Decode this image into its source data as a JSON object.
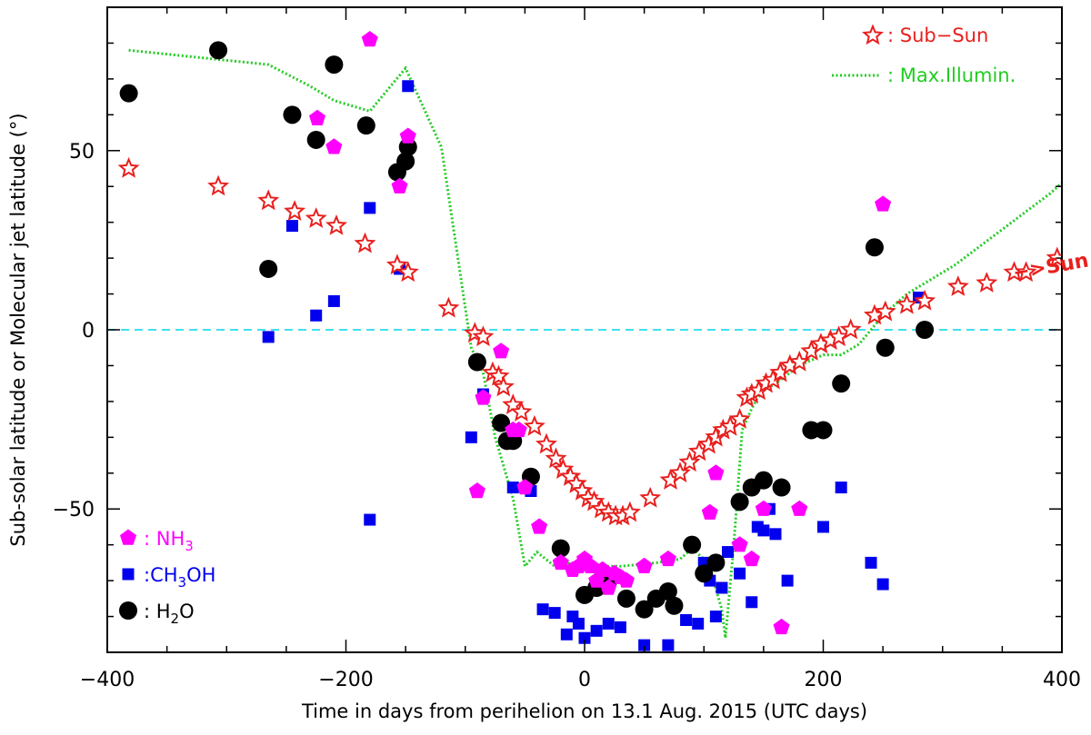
{
  "chart_data": {
    "type": "scatter",
    "xlabel": "Time in days from perihelion on 13.1 Aug. 2015 (UTC days)",
    "ylabel": "Sub-solar latitude or Molecular jet latitude (°)",
    "xlim": [
      -400,
      400
    ],
    "ylim": [
      -90,
      90
    ],
    "xticks": [
      -400,
      -200,
      0,
      200,
      400
    ],
    "yticks": [
      -50,
      0,
      50
    ],
    "xtick_labels": [
      "−400",
      "−200",
      "0",
      "200",
      "400"
    ],
    "ytick_labels": [
      "−50",
      "0",
      "50"
    ],
    "zero_line": {
      "y": 0,
      "color": "#40e0f0",
      "style": "dashed"
    },
    "annotation": "−>Sun",
    "annotation_point": {
      "x": 360,
      "y": 14
    },
    "legend": [
      {
        "label": ": Sub−Sun",
        "color": "#e8201e",
        "marker": "star",
        "location": "top-right"
      },
      {
        "label": ": Max.Illumin.",
        "color": "#22cc22",
        "marker": "dotted-line",
        "location": "top-right"
      },
      {
        "label": ": NH",
        "sub": "3",
        "tail": "",
        "color": "#ff00ff",
        "marker": "pentagon",
        "location": "bottom-left"
      },
      {
        "label": ":CH",
        "sub": "3",
        "tail": "OH",
        "color": "#0000ee",
        "marker": "square",
        "location": "bottom-left"
      },
      {
        "label": ": H",
        "sub": "2",
        "tail": "O",
        "color": "#000000",
        "marker": "circle",
        "location": "bottom-left"
      }
    ],
    "series": [
      {
        "name": "Sub-Sun",
        "color": "#e8201e",
        "marker": "star",
        "x": [
          -382,
          -307,
          -265,
          -243,
          -225,
          -208,
          -184,
          -157,
          -148,
          -114,
          -92,
          -85,
          -77,
          -72,
          -68,
          -60,
          -53,
          -42,
          -32,
          -24,
          -18,
          -12,
          -7,
          -2,
          3,
          8,
          14,
          20,
          26,
          32,
          38,
          55,
          72,
          80,
          88,
          96,
          104,
          110,
          116,
          122,
          130,
          136,
          140,
          146,
          152,
          158,
          164,
          172,
          180,
          190,
          198,
          206,
          213,
          223,
          243,
          252,
          270,
          285,
          313,
          337,
          360,
          370,
          396
        ],
        "y": [
          45,
          40,
          36,
          33,
          31,
          29,
          24,
          18,
          16,
          6,
          -1,
          -2,
          -12,
          -13,
          -16,
          -21,
          -23,
          -27,
          -32,
          -36,
          -39,
          -41,
          -43,
          -45,
          -47,
          -48,
          -50,
          -51,
          -52,
          -52,
          -51,
          -47,
          -42,
          -40,
          -37,
          -34,
          -32,
          -30,
          -28,
          -27,
          -25,
          -19,
          -18,
          -17,
          -15,
          -14,
          -12,
          -10,
          -9,
          -6,
          -4,
          -3,
          -2,
          0,
          4,
          5,
          7,
          8,
          12,
          13,
          16,
          16,
          20
        ]
      },
      {
        "name": "Max.Illumin.",
        "color": "#22cc22",
        "marker": "line",
        "x": [
          -382,
          -265,
          -230,
          -210,
          -180,
          -150,
          -120,
          -95,
          -85,
          -75,
          -60,
          -50,
          -40,
          -25,
          -15,
          -5,
          0,
          10,
          30,
          60,
          80,
          90,
          100,
          108,
          115,
          118,
          125,
          132,
          140,
          145,
          150,
          160,
          180,
          200,
          215,
          230,
          250,
          270,
          290,
          310,
          330,
          350,
          370,
          390,
          400
        ],
        "y": [
          78,
          74,
          68,
          64,
          61,
          73,
          51,
          -5,
          -12,
          -30,
          -47,
          -66,
          -62,
          -66,
          -65,
          -66,
          -64,
          -66,
          -66,
          -65,
          -64,
          -61,
          -64,
          -70,
          -78,
          -86,
          -60,
          -28,
          -22,
          -19,
          -17,
          -15,
          -10,
          -7,
          -7,
          -4,
          4,
          10,
          14,
          18,
          23,
          28,
          33,
          38,
          41
        ]
      },
      {
        "name": "NH3",
        "color": "#ff00ff",
        "marker": "pentagon",
        "x": [
          -224,
          -210,
          -180,
          -155,
          -148,
          -70,
          -60,
          -55,
          -90,
          -85,
          -50,
          -38,
          -20,
          -10,
          -5,
          0,
          5,
          10,
          15,
          20,
          25,
          30,
          35,
          50,
          70,
          105,
          110,
          130,
          140,
          150,
          165,
          180,
          250
        ],
        "y": [
          59,
          51,
          81,
          40,
          54,
          -6,
          -28,
          -28,
          -45,
          -19,
          -44,
          -55,
          -65,
          -67,
          -66,
          -64,
          -66,
          -70,
          -67,
          -72,
          -68,
          -69,
          -70,
          -66,
          -64,
          -51,
          -40,
          -60,
          -64,
          -50,
          -83,
          -50,
          35
        ]
      },
      {
        "name": "CH3OH",
        "color": "#0000ee",
        "marker": "square",
        "x": [
          -265,
          -245,
          -225,
          -210,
          -180,
          -180,
          -155,
          -148,
          -95,
          -85,
          -60,
          -45,
          -35,
          -25,
          -15,
          -10,
          -5,
          0,
          10,
          20,
          30,
          50,
          70,
          85,
          95,
          100,
          105,
          110,
          115,
          120,
          130,
          140,
          145,
          150,
          155,
          160,
          170,
          200,
          215,
          240,
          250,
          280
        ],
        "y": [
          -2,
          29,
          4,
          8,
          34,
          -53,
          17,
          68,
          -30,
          -18,
          -44,
          -45,
          -78,
          -79,
          -85,
          -80,
          -82,
          -86,
          -84,
          -82,
          -83,
          -88,
          -88,
          -81,
          -82,
          -65,
          -70,
          -80,
          -72,
          -62,
          -68,
          -76,
          -55,
          -56,
          -50,
          -57,
          -70,
          -55,
          -44,
          -65,
          -71,
          9
        ]
      },
      {
        "name": "H2O",
        "color": "#000000",
        "marker": "circle",
        "x": [
          -382,
          -307,
          -265,
          -245,
          -225,
          -210,
          -183,
          -157,
          -150,
          -148,
          -90,
          -70,
          -65,
          -60,
          -45,
          -20,
          0,
          10,
          20,
          35,
          50,
          60,
          70,
          75,
          90,
          100,
          110,
          130,
          140,
          150,
          165,
          190,
          200,
          215,
          243,
          252,
          285
        ],
        "y": [
          66,
          78,
          17,
          60,
          53,
          74,
          57,
          44,
          47,
          51,
          -9,
          -26,
          -31,
          -31,
          -41,
          -61,
          -74,
          -72,
          -70,
          -75,
          -78,
          -75,
          -73,
          -77,
          -60,
          -68,
          -65,
          -48,
          -44,
          -42,
          -44,
          -28,
          -28,
          -15,
          23,
          -5,
          0
        ]
      }
    ]
  }
}
